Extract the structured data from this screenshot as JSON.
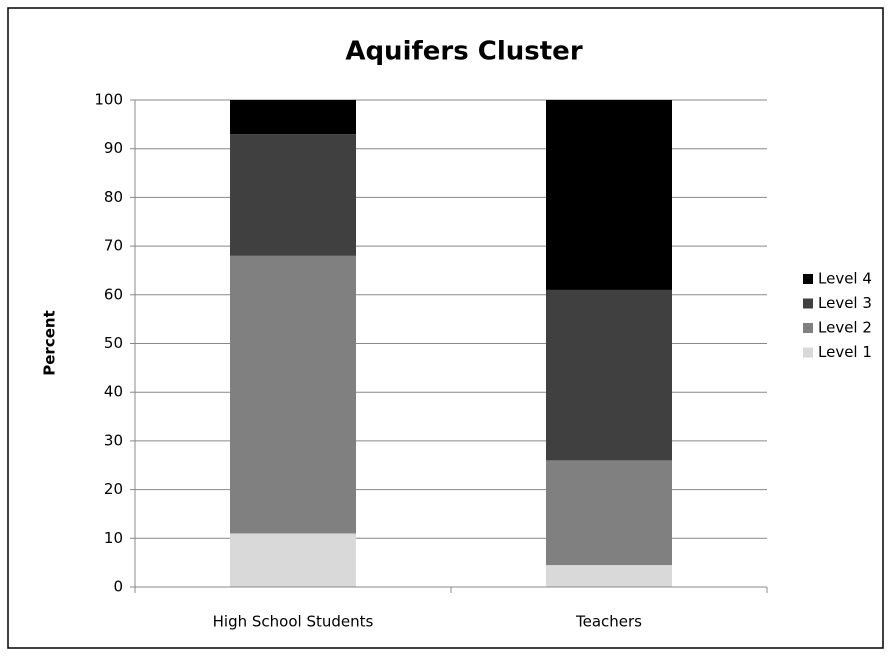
{
  "chart_data": {
    "type": "stacked_bar",
    "title": "Aquifers Cluster",
    "y_label": "Percent",
    "categories": [
      "High School Students",
      "Teachers"
    ],
    "series": [
      {
        "name": "Level 1",
        "color": "#d9d9d9",
        "values": [
          11,
          4.5
        ]
      },
      {
        "name": "Level 2",
        "color": "#808080",
        "values": [
          57,
          21.5
        ]
      },
      {
        "name": "Level 3",
        "color": "#404040",
        "values": [
          25,
          35
        ]
      },
      {
        "name": "Level 4",
        "color": "#000000",
        "values": [
          7,
          39
        ]
      }
    ],
    "ylim": [
      0,
      100
    ],
    "yticks": [
      0,
      10,
      20,
      30,
      40,
      50,
      60,
      70,
      80,
      90,
      100
    ],
    "grid": true,
    "legend": "right"
  }
}
